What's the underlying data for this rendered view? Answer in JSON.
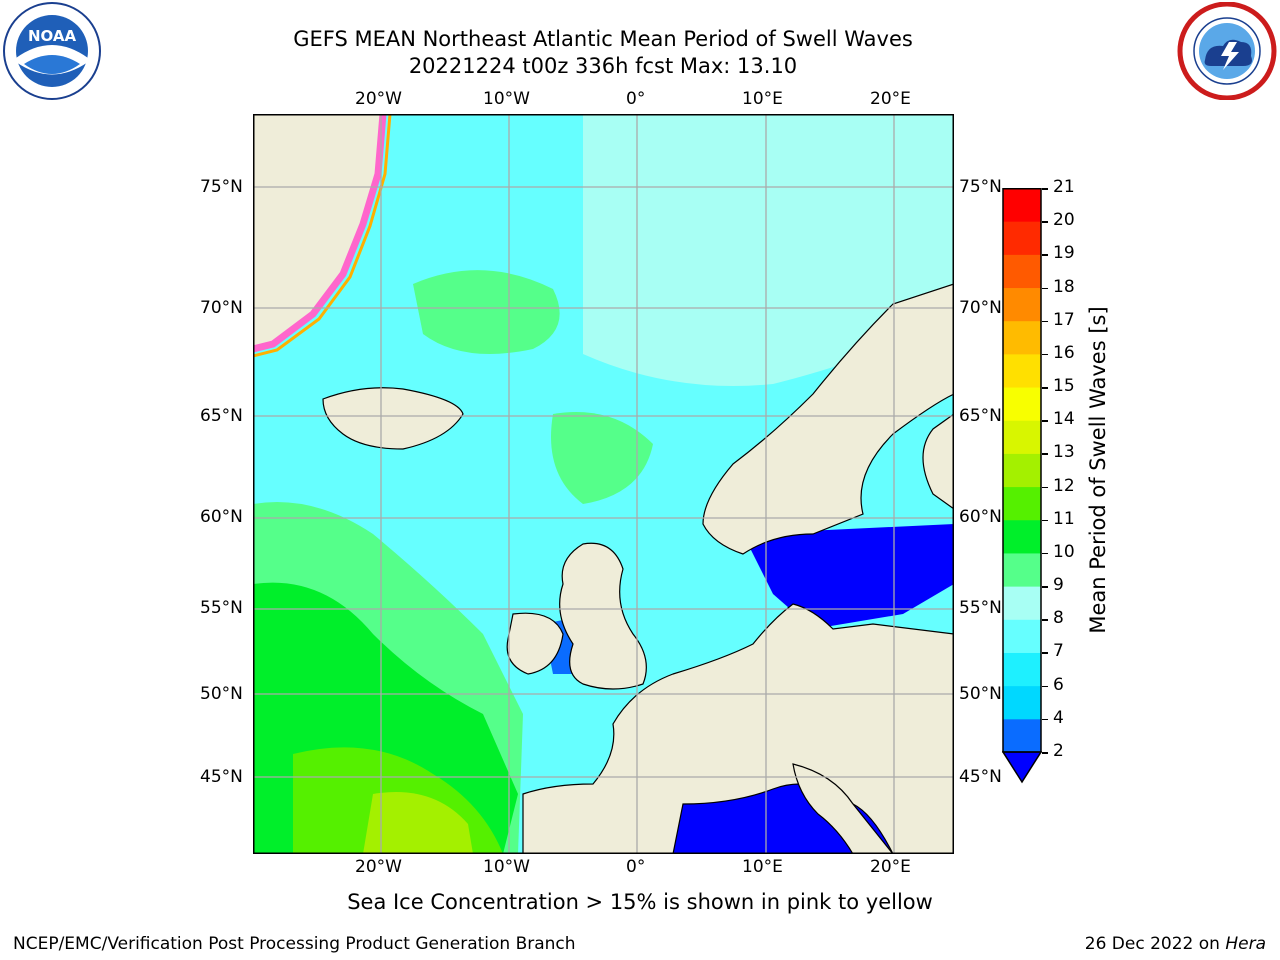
{
  "header": {
    "title_line1": "GEFS MEAN Northeast Atlantic Mean Period of Swell Waves",
    "title_line2": "20221224 t00z 336h fcst   Max: 13.10"
  },
  "logos": {
    "noaa": {
      "text": "NOAA",
      "ring_text": "NATIONAL OCEANIC AND ATMOSPHERIC ADMINISTRATION · U.S. DEPARTMENT OF COMMERCE"
    },
    "nws": {
      "ring_text": "NATIONAL WEATHER SERVICE"
    }
  },
  "map": {
    "lon_labels": [
      "20°W",
      "10°W",
      "0°",
      "10°E",
      "20°E"
    ],
    "lat_labels": [
      "75°N",
      "70°N",
      "65°N",
      "60°N",
      "55°N",
      "50°N",
      "45°N"
    ]
  },
  "colorbar": {
    "label": "Mean Period of Swell Waves [s]",
    "ticks": [
      "2",
      "4",
      "6",
      "7",
      "8",
      "9",
      "10",
      "11",
      "12",
      "13",
      "14",
      "15",
      "16",
      "17",
      "18",
      "19",
      "20",
      "21"
    ],
    "colors": [
      "#0000ff",
      "#0a6cff",
      "#00d8ff",
      "#1ef0ff",
      "#66ffff",
      "#a8fff4",
      "#55ff8a",
      "#00ef2a",
      "#55f000",
      "#a4f000",
      "#d8f600",
      "#f8ff00",
      "#ffe000",
      "#ffbb00",
      "#ff8a00",
      "#ff5a00",
      "#ff2a00",
      "#ff0000"
    ]
  },
  "notes": {
    "ice_note": "Sea Ice Concentration > 15% is shown in pink to yellow",
    "credit": "NCEP/EMC/Verification Post Processing Product Generation Branch",
    "date_prefix": "26 Dec 2022 on ",
    "date_machine": "Hera"
  }
}
